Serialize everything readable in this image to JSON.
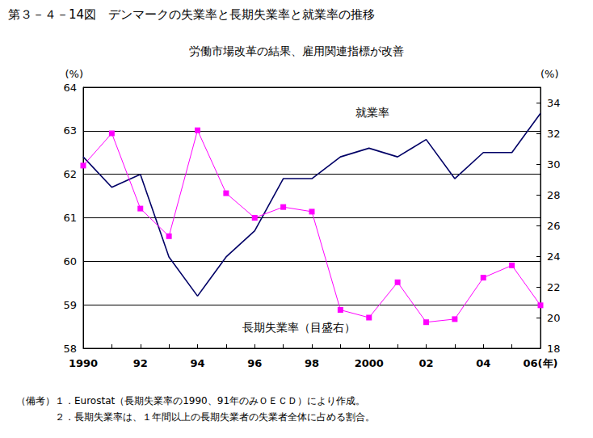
{
  "chart_data": {
    "type": "line",
    "title": "第３－４－14図　デンマークの失業率と長期失業率と就業率の推移",
    "subtitle": "労働市場改革の結果、雇用関連指標が改善",
    "categories": [
      "1990",
      null,
      "92",
      null,
      "94",
      null,
      "96",
      null,
      "98",
      null,
      "2000",
      null,
      "02",
      null,
      "04",
      null,
      "06(年)"
    ],
    "series": [
      {
        "name": "就業率",
        "color": "#000066",
        "marker": "none",
        "line_style": "solid",
        "values": [
          62.4,
          61.7,
          62.0,
          60.1,
          59.2,
          60.1,
          60.7,
          61.9,
          61.9,
          62.4,
          62.6,
          62.4,
          62.8,
          61.9,
          62.5,
          62.5,
          63.4
        ]
      },
      {
        "name": "長期失業率（目盛右）",
        "color": "#ff00ff",
        "marker": "square",
        "line_style": "solid",
        "axis": "y2",
        "values": [
          29.9,
          32.0,
          27.1,
          25.3,
          32.2,
          28.1,
          26.5,
          27.2,
          26.9,
          20.5,
          20.0,
          22.3,
          19.7,
          19.9,
          22.6,
          23.4,
          20.8
        ]
      }
    ],
    "y_label": "(%)",
    "y2_label": "(%)",
    "ylim": [
      58,
      64
    ],
    "yticks": [
      58,
      59,
      60,
      61,
      62,
      63,
      64
    ],
    "y2lim": [
      18,
      35
    ],
    "y2ticks": [
      18,
      20,
      22,
      24,
      26,
      28,
      30,
      32,
      34
    ],
    "grid": true,
    "notes": [
      "（備考）１．Eurostat（長期失業率の1990、91年のみＯＥＣＤ）により作成。",
      "　　　　２．長期失業率は、１年間以上の長期失業者の失業者全体に占める割合。"
    ]
  }
}
